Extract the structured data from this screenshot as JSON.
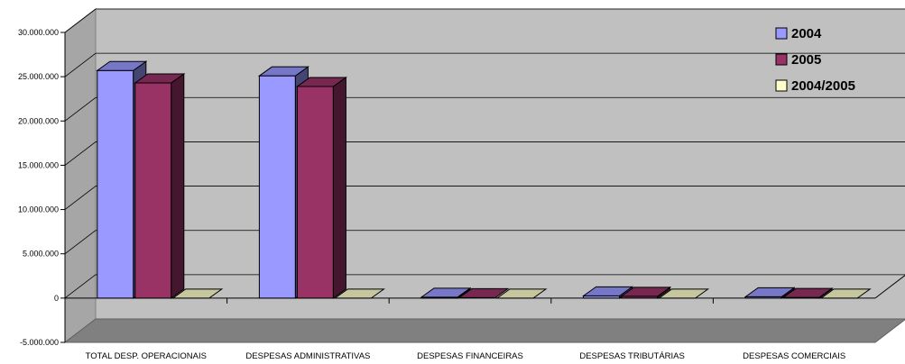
{
  "chart_data": {
    "type": "bar",
    "title": "",
    "xlabel": "",
    "ylabel": "",
    "ylim": [
      -5000000,
      30000000
    ],
    "y_ticks": [
      -5000000,
      0,
      5000000,
      10000000,
      15000000,
      20000000,
      25000000,
      30000000
    ],
    "y_tick_labels": [
      "-5.000.000",
      "0",
      "5.000.000",
      "10.000.000",
      "15.000.000",
      "20.000.000",
      "25.000.000",
      "30.000.000"
    ],
    "categories": [
      "TOTAL DESP. OPERACIONAIS",
      "DESPESAS ADMINISTRATIVAS",
      "DESPESAS FINANCEIRAS",
      "DESPESAS TRIBUTÁRIAS",
      "DESPESAS COMERCIAIS"
    ],
    "series": [
      {
        "name": "2004",
        "values": [
          25700000,
          25100000,
          100000,
          250000,
          150000
        ]
      },
      {
        "name": "2005",
        "values": [
          24300000,
          23900000,
          50000,
          200000,
          80000
        ]
      },
      {
        "name": "2004/2005",
        "values": [
          0,
          0,
          0,
          0,
          0
        ]
      }
    ],
    "grid": true,
    "legend_position": "top-right",
    "colors": {
      "series": [
        "#9999ff",
        "#993366",
        "#ffffcc"
      ],
      "back_wall": "#c0c0c0",
      "side_wall": "#a6a6a6",
      "floor": "#808080",
      "grid": "#000000"
    }
  }
}
